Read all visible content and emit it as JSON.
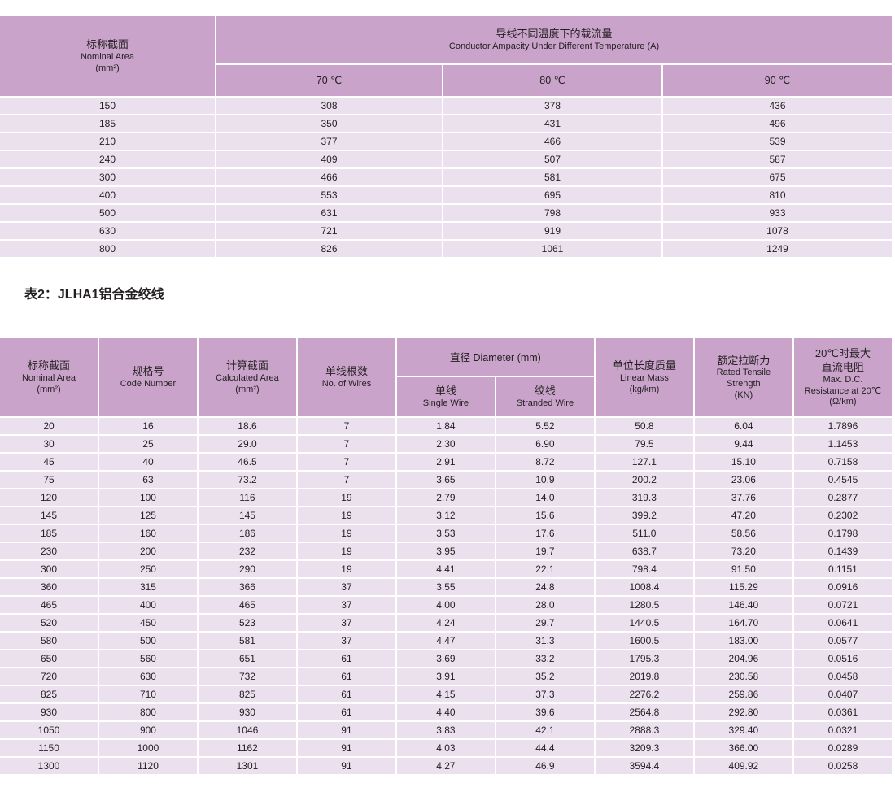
{
  "colors": {
    "header_bg": "#c9a3ca",
    "row_bg": "#ebe1ee",
    "text": "#231f20",
    "page_bg": "#ffffff"
  },
  "ampacity_table": {
    "corner": {
      "zh": "标称截面",
      "en": "Nominal Area\n(mm²)"
    },
    "title": {
      "zh": "导线不同温度下的载流量",
      "en": "Conductor Ampacity Under Different Temperature (A)"
    },
    "temps": [
      "70 ℃",
      "80 ℃",
      "90 ℃"
    ],
    "rows": [
      [
        "150",
        "308",
        "378",
        "436"
      ],
      [
        "185",
        "350",
        "431",
        "496"
      ],
      [
        "210",
        "377",
        "466",
        "539"
      ],
      [
        "240",
        "409",
        "507",
        "587"
      ],
      [
        "300",
        "466",
        "581",
        "675"
      ],
      [
        "400",
        "553",
        "695",
        "810"
      ],
      [
        "500",
        "631",
        "798",
        "933"
      ],
      [
        "630",
        "721",
        "919",
        "1078"
      ],
      [
        "800",
        "826",
        "1061",
        "1249"
      ]
    ]
  },
  "section_title": "表2：JLHA1铝合金绞线",
  "spec_table": {
    "headers": {
      "nominal_area": {
        "zh": "标称截面",
        "en": "Nominal Area\n(mm²)"
      },
      "code_number": {
        "zh": "规格号",
        "en": "Code Number"
      },
      "calculated_area": {
        "zh": "计算截面",
        "en": "Calculated Area\n(mm²)"
      },
      "no_of_wires": {
        "zh": "单线根数",
        "en": "No. of Wires"
      },
      "diameter_group": "直径 Diameter (mm)",
      "single_wire": {
        "zh": "单线",
        "en": "Single Wire"
      },
      "stranded_wire": {
        "zh": "绞线",
        "en": "Stranded Wire"
      },
      "linear_mass": {
        "zh": "单位长度质量",
        "en": "Linear Mass\n(kg/km)"
      },
      "tensile_strength": {
        "zh": "额定拉断力",
        "en": "Rated Tensile\nStrength\n(KN)"
      },
      "resistance": {
        "zh": "20℃时最大\n直流电阻",
        "en": "Max. D.C.\nResistance at 20℃\n(Ω/km)"
      }
    },
    "rows": [
      [
        "20",
        "16",
        "18.6",
        "7",
        "1.84",
        "5.52",
        "50.8",
        "6.04",
        "1.7896"
      ],
      [
        "30",
        "25",
        "29.0",
        "7",
        "2.30",
        "6.90",
        "79.5",
        "9.44",
        "1.1453"
      ],
      [
        "45",
        "40",
        "46.5",
        "7",
        "2.91",
        "8.72",
        "127.1",
        "15.10",
        "0.7158"
      ],
      [
        "75",
        "63",
        "73.2",
        "7",
        "3.65",
        "10.9",
        "200.2",
        "23.06",
        "0.4545"
      ],
      [
        "120",
        "100",
        "116",
        "19",
        "2.79",
        "14.0",
        "319.3",
        "37.76",
        "0.2877"
      ],
      [
        "145",
        "125",
        "145",
        "19",
        "3.12",
        "15.6",
        "399.2",
        "47.20",
        "0.2302"
      ],
      [
        "185",
        "160",
        "186",
        "19",
        "3.53",
        "17.6",
        "511.0",
        "58.56",
        "0.1798"
      ],
      [
        "230",
        "200",
        "232",
        "19",
        "3.95",
        "19.7",
        "638.7",
        "73.20",
        "0.1439"
      ],
      [
        "300",
        "250",
        "290",
        "19",
        "4.41",
        "22.1",
        "798.4",
        "91.50",
        "0.1151"
      ],
      [
        "360",
        "315",
        "366",
        "37",
        "3.55",
        "24.8",
        "1008.4",
        "115.29",
        "0.0916"
      ],
      [
        "465",
        "400",
        "465",
        "37",
        "4.00",
        "28.0",
        "1280.5",
        "146.40",
        "0.0721"
      ],
      [
        "520",
        "450",
        "523",
        "37",
        "4.24",
        "29.7",
        "1440.5",
        "164.70",
        "0.0641"
      ],
      [
        "580",
        "500",
        "581",
        "37",
        "4.47",
        "31.3",
        "1600.5",
        "183.00",
        "0.0577"
      ],
      [
        "650",
        "560",
        "651",
        "61",
        "3.69",
        "33.2",
        "1795.3",
        "204.96",
        "0.0516"
      ],
      [
        "720",
        "630",
        "732",
        "61",
        "3.91",
        "35.2",
        "2019.8",
        "230.58",
        "0.0458"
      ],
      [
        "825",
        "710",
        "825",
        "61",
        "4.15",
        "37.3",
        "2276.2",
        "259.86",
        "0.0407"
      ],
      [
        "930",
        "800",
        "930",
        "61",
        "4.40",
        "39.6",
        "2564.8",
        "292.80",
        "0.0361"
      ],
      [
        "1050",
        "900",
        "1046",
        "91",
        "3.83",
        "42.1",
        "2888.3",
        "329.40",
        "0.0321"
      ],
      [
        "1150",
        "1000",
        "1162",
        "91",
        "4.03",
        "44.4",
        "3209.3",
        "366.00",
        "0.0289"
      ],
      [
        "1300",
        "1120",
        "1301",
        "91",
        "4.27",
        "46.9",
        "3594.4",
        "409.92",
        "0.0258"
      ]
    ]
  }
}
